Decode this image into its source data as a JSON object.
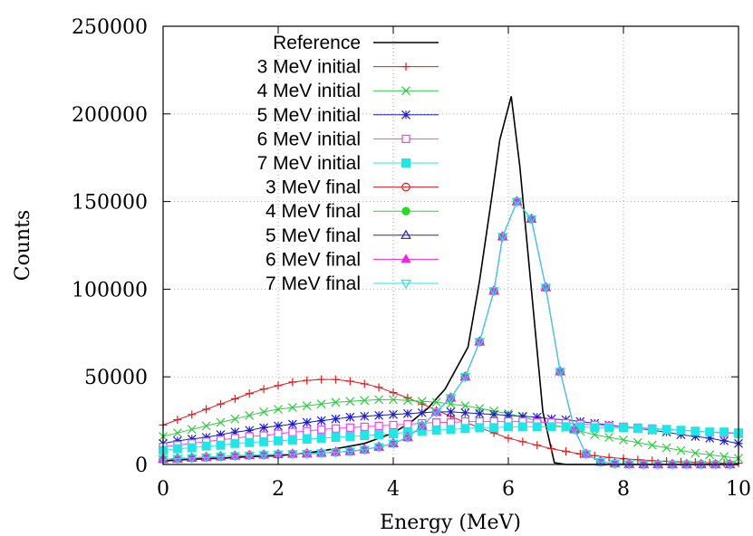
{
  "chart_data": {
    "type": "line",
    "title": "",
    "xlabel": "Energy (MeV)",
    "ylabel": "Counts",
    "xlim": [
      0,
      10
    ],
    "ylim": [
      0,
      250000
    ],
    "x_ticks": [
      "0",
      "2",
      "4",
      "6",
      "8",
      "10"
    ],
    "y_ticks": [
      "0",
      "50000",
      "100000",
      "150000",
      "200000",
      "250000"
    ],
    "grid": true,
    "legend_position": "top-left",
    "series": [
      {
        "name": "Reference",
        "color": "#000000",
        "marker": "none",
        "x": [
          0.0,
          0.5,
          1.0,
          1.5,
          2.0,
          2.5,
          3.0,
          3.5,
          4.0,
          4.3,
          4.6,
          4.9,
          5.1,
          5.3,
          5.5,
          5.7,
          5.85,
          6.05,
          6.2,
          6.4,
          6.6,
          6.8,
          7.0,
          7.5,
          8.0,
          8.5,
          9.0,
          9.5,
          10.0
        ],
        "values": [
          2000,
          3000,
          3500,
          4500,
          5000,
          6500,
          9000,
          12000,
          18000,
          24000,
          32000,
          43000,
          55000,
          67000,
          105000,
          150000,
          185000,
          210000,
          170000,
          100000,
          30000,
          1000,
          0,
          0,
          0,
          0,
          0,
          0,
          0
        ]
      },
      {
        "name": "3 MeV initial",
        "color": "#e41a1c",
        "marker": "plus",
        "x": [
          0.0,
          0.25,
          0.5,
          0.75,
          1.0,
          1.25,
          1.5,
          1.75,
          2.0,
          2.25,
          2.5,
          2.75,
          3.0,
          3.25,
          3.5,
          3.75,
          4.0,
          4.25,
          4.5,
          4.75,
          5.0,
          5.25,
          5.5,
          5.75,
          6.0,
          6.25,
          6.5,
          6.75,
          7.0,
          7.25,
          7.5,
          7.75,
          8.0,
          8.25,
          8.5,
          8.75,
          9.0,
          9.25,
          9.5,
          9.75,
          10.0
        ],
        "values": [
          22500,
          25500,
          28500,
          31500,
          34500,
          37500,
          40500,
          43000,
          45000,
          47000,
          48000,
          48500,
          48500,
          47500,
          46000,
          44000,
          41000,
          38000,
          34500,
          31000,
          27500,
          24000,
          21000,
          18000,
          15000,
          13000,
          11000,
          9000,
          7500,
          6000,
          5000,
          4000,
          3300,
          2700,
          2200,
          1800,
          1500,
          1200,
          1000,
          800,
          700
        ]
      },
      {
        "name": "4 MeV initial",
        "color": "#2ecc40",
        "marker": "x",
        "x": [
          0.0,
          0.25,
          0.5,
          0.75,
          1.0,
          1.25,
          1.5,
          1.75,
          2.0,
          2.25,
          2.5,
          2.75,
          3.0,
          3.25,
          3.5,
          3.75,
          4.0,
          4.25,
          4.5,
          4.75,
          5.0,
          5.25,
          5.5,
          5.75,
          6.0,
          6.25,
          6.5,
          6.75,
          7.0,
          7.25,
          7.5,
          7.75,
          8.0,
          8.25,
          8.5,
          8.75,
          9.0,
          9.25,
          9.5,
          9.75,
          10.0
        ],
        "values": [
          16000,
          18000,
          20000,
          22000,
          24000,
          26000,
          28000,
          30000,
          31500,
          32500,
          33500,
          34500,
          35500,
          36000,
          36500,
          37000,
          37000,
          36500,
          36000,
          35500,
          34500,
          33500,
          32000,
          30500,
          29000,
          27000,
          25000,
          23000,
          21000,
          19000,
          17000,
          15500,
          14000,
          12500,
          11000,
          9500,
          8000,
          6500,
          5500,
          4500,
          3500
        ]
      },
      {
        "name": "5 MeV initial",
        "color": "#1f1fc8",
        "marker": "star",
        "x": [
          0.0,
          0.25,
          0.5,
          0.75,
          1.0,
          1.25,
          1.5,
          1.75,
          2.0,
          2.25,
          2.5,
          2.75,
          3.0,
          3.25,
          3.5,
          3.75,
          4.0,
          4.25,
          4.5,
          4.75,
          5.0,
          5.25,
          5.5,
          5.75,
          6.0,
          6.25,
          6.5,
          6.75,
          7.0,
          7.25,
          7.5,
          7.75,
          8.0,
          8.25,
          8.5,
          8.75,
          9.0,
          9.25,
          9.5,
          9.75,
          10.0
        ],
        "values": [
          12000,
          13500,
          14500,
          15500,
          17000,
          18500,
          19500,
          21000,
          22000,
          23000,
          24000,
          25000,
          26000,
          27000,
          27500,
          28000,
          28500,
          29000,
          29500,
          30000,
          30000,
          29500,
          29000,
          28500,
          28000,
          27500,
          27000,
          26000,
          25500,
          24500,
          23500,
          22500,
          21500,
          20500,
          19500,
          18500,
          17000,
          16000,
          15000,
          13500,
          12000
        ]
      },
      {
        "name": "6 MeV initial",
        "color": "#ee44ee",
        "marker": "square-open",
        "x": [
          0.0,
          0.25,
          0.5,
          0.75,
          1.0,
          1.25,
          1.5,
          1.75,
          2.0,
          2.25,
          2.5,
          2.75,
          3.0,
          3.25,
          3.5,
          3.75,
          4.0,
          4.25,
          4.5,
          4.75,
          5.0,
          5.25,
          5.5,
          5.75,
          6.0,
          6.25,
          6.5,
          6.75,
          7.0,
          7.25,
          7.5,
          7.75,
          8.0,
          8.25,
          8.5,
          8.75,
          9.0,
          9.25,
          9.5,
          9.75,
          10.0
        ],
        "values": [
          10000,
          11000,
          12000,
          13000,
          14000,
          15000,
          16000,
          16500,
          17500,
          18500,
          19000,
          20000,
          20500,
          21000,
          21500,
          22000,
          22500,
          23000,
          23500,
          24000,
          24000,
          24500,
          24500,
          24500,
          24500,
          24500,
          24000,
          24000,
          23500,
          23000,
          22500,
          22000,
          21500,
          21000,
          20500,
          20000,
          19500,
          19000,
          18500,
          18000,
          17500
        ]
      },
      {
        "name": "7 MeV initial",
        "color": "#22e5e5",
        "marker": "square-filled",
        "x": [
          0.0,
          0.25,
          0.5,
          0.75,
          1.0,
          1.25,
          1.5,
          1.75,
          2.0,
          2.25,
          2.5,
          2.75,
          3.0,
          3.25,
          3.5,
          3.75,
          4.0,
          4.25,
          4.5,
          4.75,
          5.0,
          5.25,
          5.5,
          5.75,
          6.0,
          6.25,
          6.5,
          6.75,
          7.0,
          7.25,
          7.5,
          7.75,
          8.0,
          8.25,
          8.5,
          8.75,
          9.0,
          9.25,
          9.5,
          9.75,
          10.0
        ],
        "values": [
          8000,
          9000,
          9500,
          10500,
          11000,
          12000,
          12500,
          13000,
          13500,
          14000,
          14500,
          15000,
          15500,
          16000,
          16500,
          17000,
          17500,
          18500,
          19000,
          19500,
          20000,
          20500,
          21000,
          21000,
          21500,
          21500,
          21500,
          21500,
          21500,
          21500,
          21000,
          21000,
          21000,
          20500,
          20000,
          20000,
          19500,
          19000,
          18500,
          18500,
          18000
        ]
      },
      {
        "name": "3 MeV final",
        "color": "#e41a1c",
        "marker": "circle-open",
        "x": [
          0.0,
          0.25,
          0.5,
          0.75,
          1.0,
          1.25,
          1.5,
          1.75,
          2.0,
          2.25,
          2.5,
          2.75,
          3.0,
          3.25,
          3.5,
          3.75,
          4.0,
          4.25,
          4.5,
          4.75,
          5.0,
          5.25,
          5.5,
          5.75,
          5.9,
          6.15,
          6.4,
          6.65,
          6.9,
          7.15,
          7.35,
          7.6,
          7.85,
          8.1,
          8.35,
          8.6,
          8.85,
          9.1,
          9.35,
          9.6,
          9.85
        ],
        "values": [
          3000,
          3300,
          3700,
          4100,
          4500,
          4900,
          5200,
          5500,
          5800,
          6000,
          6200,
          6500,
          7000,
          7500,
          8500,
          10000,
          12000,
          15500,
          22000,
          30000,
          38000,
          50000,
          70000,
          99000,
          130000,
          150000,
          140000,
          101000,
          53000,
          20000,
          6000,
          1500,
          500,
          200,
          100,
          100,
          100,
          100,
          100,
          100,
          100
        ]
      },
      {
        "name": "4 MeV final",
        "color": "#22dd22",
        "marker": "circle-filled",
        "x": [
          0.0,
          0.25,
          0.5,
          0.75,
          1.0,
          1.25,
          1.5,
          1.75,
          2.0,
          2.25,
          2.5,
          2.75,
          3.0,
          3.25,
          3.5,
          3.75,
          4.0,
          4.25,
          4.5,
          4.75,
          5.0,
          5.25,
          5.5,
          5.75,
          5.9,
          6.15,
          6.4,
          6.65,
          6.9,
          7.15,
          7.35,
          7.6,
          7.85,
          8.1,
          8.35,
          8.6,
          8.85,
          9.1,
          9.35,
          9.6,
          9.85
        ],
        "values": [
          3000,
          3300,
          3700,
          4100,
          4500,
          4900,
          5200,
          5500,
          5800,
          6000,
          6200,
          6500,
          7000,
          7500,
          8500,
          10000,
          12000,
          15500,
          22000,
          30000,
          38000,
          50000,
          70000,
          99000,
          130000,
          150000,
          140000,
          101000,
          53000,
          20000,
          6000,
          1500,
          500,
          200,
          100,
          100,
          100,
          100,
          100,
          100,
          100
        ]
      },
      {
        "name": "5 MeV final",
        "color": "#1f1fc8",
        "marker": "triangle-open",
        "x": [
          0.0,
          0.25,
          0.5,
          0.75,
          1.0,
          1.25,
          1.5,
          1.75,
          2.0,
          2.25,
          2.5,
          2.75,
          3.0,
          3.25,
          3.5,
          3.75,
          4.0,
          4.25,
          4.5,
          4.75,
          5.0,
          5.25,
          5.5,
          5.75,
          5.9,
          6.15,
          6.4,
          6.65,
          6.9,
          7.15,
          7.35,
          7.6,
          7.85,
          8.1,
          8.35,
          8.6,
          8.85,
          9.1,
          9.35,
          9.6,
          9.85
        ],
        "values": [
          3000,
          3300,
          3700,
          4100,
          4500,
          4900,
          5200,
          5500,
          5800,
          6000,
          6200,
          6500,
          7000,
          7500,
          8500,
          10000,
          12000,
          15500,
          22000,
          30000,
          38000,
          50000,
          70000,
          99000,
          130000,
          150000,
          140000,
          101000,
          53000,
          20000,
          6000,
          1500,
          500,
          200,
          100,
          100,
          100,
          100,
          100,
          100,
          100
        ]
      },
      {
        "name": "6 MeV final",
        "color": "#ee22ee",
        "marker": "triangle-filled",
        "x": [
          0.0,
          0.25,
          0.5,
          0.75,
          1.0,
          1.25,
          1.5,
          1.75,
          2.0,
          2.25,
          2.5,
          2.75,
          3.0,
          3.25,
          3.5,
          3.75,
          4.0,
          4.25,
          4.5,
          4.75,
          5.0,
          5.25,
          5.5,
          5.75,
          5.9,
          6.15,
          6.4,
          6.65,
          6.9,
          7.15,
          7.35,
          7.6,
          7.85,
          8.1,
          8.35,
          8.6,
          8.85,
          9.1,
          9.35,
          9.6,
          9.85
        ],
        "values": [
          3000,
          3300,
          3700,
          4100,
          4500,
          4900,
          5200,
          5500,
          5800,
          6000,
          6200,
          6500,
          7000,
          7500,
          8500,
          10000,
          12000,
          15500,
          22000,
          30000,
          38000,
          50000,
          70000,
          99000,
          130000,
          150000,
          140000,
          101000,
          53000,
          20000,
          6000,
          1500,
          500,
          200,
          100,
          100,
          100,
          100,
          100,
          100,
          100
        ]
      },
      {
        "name": "7 MeV final",
        "color": "#22e5e5",
        "marker": "triangle-down-open",
        "x": [
          0.0,
          0.25,
          0.5,
          0.75,
          1.0,
          1.25,
          1.5,
          1.75,
          2.0,
          2.25,
          2.5,
          2.75,
          3.0,
          3.25,
          3.5,
          3.75,
          4.0,
          4.25,
          4.5,
          4.75,
          5.0,
          5.25,
          5.5,
          5.75,
          5.9,
          6.15,
          6.4,
          6.65,
          6.9,
          7.15,
          7.35,
          7.6,
          7.85,
          8.1,
          8.35,
          8.6,
          8.85,
          9.1,
          9.35,
          9.6,
          9.85
        ],
        "values": [
          3000,
          3300,
          3700,
          4100,
          4500,
          4900,
          5200,
          5500,
          5800,
          6000,
          6200,
          6500,
          7000,
          7500,
          8500,
          10000,
          12000,
          15500,
          22000,
          30000,
          38000,
          50000,
          70000,
          99000,
          130000,
          150000,
          140000,
          101000,
          53000,
          20000,
          6000,
          1500,
          500,
          200,
          100,
          100,
          100,
          100,
          100,
          100,
          100
        ]
      }
    ]
  }
}
